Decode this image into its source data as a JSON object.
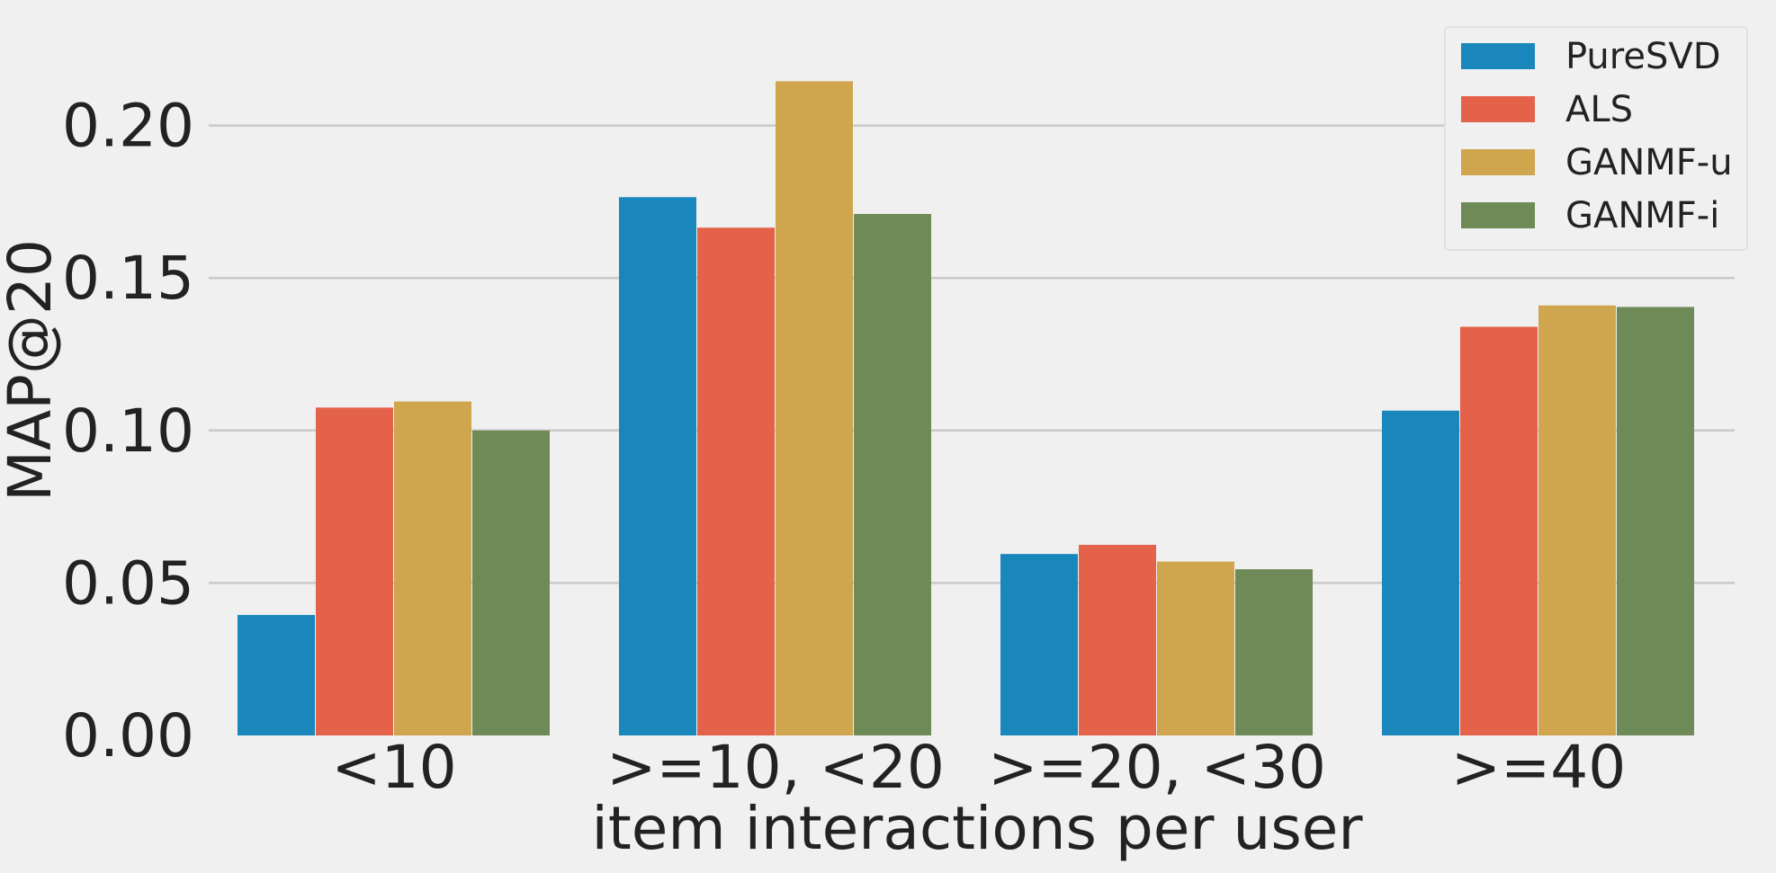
{
  "chart_data": {
    "type": "bar",
    "categories": [
      "<10",
      ">=10, <20",
      ">=20, <30",
      ">=40"
    ],
    "series": [
      {
        "name": "PureSVD",
        "color": "#1a87bc",
        "values": [
          0.0395,
          0.1765,
          0.0595,
          0.1065
        ]
      },
      {
        "name": "ALS",
        "color": "#e4614a",
        "values": [
          0.1075,
          0.1665,
          0.0625,
          0.134
        ]
      },
      {
        "name": "GANMF-u",
        "color": "#cfa54e",
        "values": [
          0.1095,
          0.2145,
          0.057,
          0.141
        ]
      },
      {
        "name": "GANMF-i",
        "color": "#6e8a57",
        "values": [
          0.1,
          0.171,
          0.0545,
          0.1405
        ]
      }
    ],
    "y_ticks": [
      "0.00",
      "0.05",
      "0.10",
      "0.15",
      "0.20"
    ],
    "y_tick_values": [
      0,
      0.05,
      0.1,
      0.15,
      0.2
    ],
    "ylim": [
      0,
      0.227
    ],
    "xlabel": "item interactions per user",
    "ylabel": "MAP@20",
    "grid": "horizontal",
    "legend_position": "top-right"
  }
}
